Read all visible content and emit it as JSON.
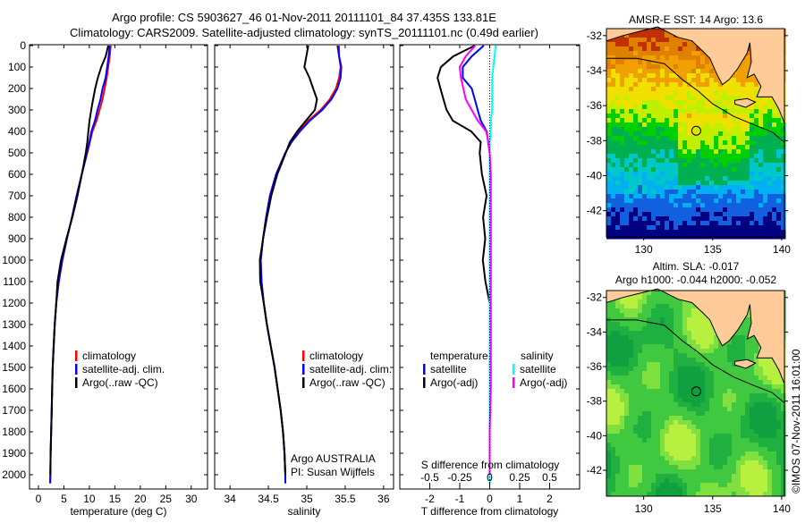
{
  "chart_data": [
    {
      "type": "line",
      "title_line1": "Argo profile: CS 5903627_46 01-Nov-2011 20111101_84 37.435S 133.81E",
      "title_line2": "Climatology: CARS2009. Satellite-adjusted climatology: synTS_20111101.nc (0.49d earlier)",
      "xlabel": "temperature (deg C)",
      "xlim": [
        -1.75,
        33.2
      ],
      "xticks": [
        "0",
        "5",
        "10",
        "15",
        "20",
        "25",
        "30"
      ],
      "ylim": [
        0,
        2065
      ],
      "yticks": [
        "0",
        "100",
        "200",
        "300",
        "400",
        "500",
        "600",
        "700",
        "800",
        "900",
        "1000",
        "1100",
        "1200",
        "1300",
        "1400",
        "1500",
        "1600",
        "1700",
        "1800",
        "1900",
        "2000"
      ],
      "legend": [
        "climatology",
        "satellite-adj. clim.",
        "Argo(..raw -QC)"
      ],
      "depth": [
        0,
        50,
        100,
        150,
        200,
        250,
        300,
        350,
        400,
        450,
        500,
        600,
        700,
        800,
        900,
        1000,
        1100,
        1200,
        1300,
        1400,
        1500,
        1600,
        1700,
        1800,
        1900,
        2000,
        2040
      ],
      "series": [
        {
          "name": "climatology",
          "color": "#ff0000",
          "values": [
            14.2,
            14.0,
            13.7,
            13.4,
            13.0,
            12.6,
            12.0,
            11.4,
            10.6,
            10.1,
            9.6,
            8.5,
            7.5,
            6.6,
            5.6,
            4.7,
            4.0,
            3.5,
            3.2,
            3.0,
            2.8,
            2.7,
            2.6,
            2.5,
            2.4,
            2.35,
            2.3
          ]
        },
        {
          "name": "satellite-adj. clim.",
          "color": "#0000ff",
          "values": [
            14.0,
            13.8,
            13.5,
            13.2,
            12.6,
            12.2,
            11.6,
            11.1,
            10.4,
            10.0,
            9.5,
            8.5,
            7.5,
            6.6,
            5.6,
            4.7,
            4.0,
            3.5,
            3.2,
            3.0,
            2.8,
            2.7,
            2.6,
            2.5,
            2.4,
            2.35,
            2.3
          ]
        },
        {
          "name": "Argo(..raw -QC)",
          "color": "#000000",
          "values": [
            13.7,
            13.3,
            12.5,
            11.9,
            11.4,
            11.0,
            10.6,
            10.2,
            9.9,
            9.6,
            9.2,
            8.3,
            7.4,
            6.5,
            5.5,
            4.6,
            4.0,
            3.5,
            3.2,
            3.0,
            2.8,
            2.7,
            2.6,
            2.5,
            2.4,
            2.35,
            null
          ]
        }
      ]
    },
    {
      "type": "line",
      "xlabel": "salinity",
      "xlim": [
        33.8,
        36.13
      ],
      "xticks": [
        "34",
        "34.5",
        "35",
        "35.5",
        "36"
      ],
      "legend": [
        "climatology",
        "satellite-adj. clim.",
        "Argo(..raw -QC)"
      ],
      "annotation": [
        "Argo AUSTRALIA",
        "PI: Susan Wijffels"
      ],
      "depth": [
        0,
        50,
        100,
        150,
        200,
        250,
        300,
        350,
        400,
        450,
        500,
        600,
        700,
        800,
        900,
        1000,
        1100,
        1200,
        1300,
        1400,
        1500,
        1600,
        1700,
        1800,
        1900,
        2000,
        2040
      ],
      "series": [
        {
          "name": "climatology",
          "color": "#ff0000",
          "values": [
            35.42,
            35.42,
            35.44,
            35.42,
            35.38,
            35.3,
            35.18,
            35.02,
            34.9,
            34.8,
            34.72,
            34.6,
            34.52,
            34.47,
            34.43,
            34.4,
            34.41,
            34.44,
            34.48,
            34.53,
            34.58,
            34.62,
            34.66,
            34.69,
            34.71,
            34.72,
            34.72
          ]
        },
        {
          "name": "satellite-adj. clim.",
          "color": "#0000ff",
          "values": [
            35.4,
            35.42,
            35.45,
            35.44,
            35.4,
            35.32,
            35.2,
            35.04,
            34.91,
            34.8,
            34.72,
            34.6,
            34.52,
            34.47,
            34.43,
            34.4,
            34.41,
            34.44,
            34.48,
            34.53,
            34.58,
            34.62,
            34.66,
            34.69,
            34.71,
            34.72,
            34.72
          ]
        },
        {
          "name": "Argo(..raw -QC)",
          "color": "#000000",
          "values": [
            35.02,
            35.0,
            34.98,
            35.05,
            35.1,
            35.15,
            35.12,
            35.0,
            34.88,
            34.78,
            34.72,
            34.6,
            34.52,
            34.47,
            34.43,
            34.4,
            34.41,
            34.44,
            34.48,
            34.53,
            34.58,
            34.62,
            34.66,
            34.69,
            34.71,
            34.72,
            null
          ]
        }
      ]
    },
    {
      "type": "line",
      "xlabel": "T difference from climatology",
      "xlabel_top": "S difference from climatology",
      "xlim": [
        -3,
        3
      ],
      "xticks": [
        "-2",
        "-1",
        "0",
        "1",
        "2"
      ],
      "xticks_top": [
        "-0.5",
        "-0.25",
        "0",
        "0.25",
        "0.5"
      ],
      "legend_left_title": "temperature",
      "legend_right_title": "salinity",
      "legend": [
        "satellite",
        "Argo(-adj)",
        "satellite",
        "Argo(-adj)"
      ],
      "depth": [
        0,
        50,
        100,
        150,
        200,
        250,
        300,
        350,
        400,
        450,
        500,
        600,
        700,
        800,
        900,
        1000,
        1100,
        1200,
        1400,
        1600,
        1800,
        2000,
        2040
      ],
      "series": [
        {
          "name": "T satellite",
          "color": "#0000ff",
          "values": [
            -0.2,
            -0.6,
            -0.9,
            -0.9,
            -0.6,
            -0.5,
            -0.4,
            -0.3,
            -0.1,
            -0.05,
            0,
            0,
            0,
            0,
            0,
            0,
            0,
            0,
            0,
            0,
            0,
            0,
            0
          ]
        },
        {
          "name": "T Argo(-adj)",
          "color": "#000000",
          "values": [
            -0.5,
            -1.2,
            -1.6,
            -1.7,
            -1.6,
            -1.5,
            -1.4,
            -1.2,
            -0.6,
            -0.3,
            -0.35,
            -0.3,
            -0.15,
            -0.25,
            -0.15,
            -0.2,
            -0.1,
            0,
            0,
            0,
            0,
            0,
            null
          ]
        },
        {
          "name": "S satellite",
          "color": "#00ffff",
          "values": [
            0.05,
            0.04,
            0.03,
            0.02,
            0.02,
            0.02,
            0.02,
            0.01,
            0.01,
            0,
            0,
            0,
            0,
            0,
            0,
            0,
            0,
            0,
            0,
            0,
            0,
            0,
            0
          ]
        },
        {
          "name": "S Argo(-adj)",
          "color": "#ff00ff",
          "values": [
            -0.12,
            -0.2,
            -0.25,
            -0.24,
            -0.22,
            -0.2,
            -0.15,
            -0.1,
            -0.03,
            -0.01,
            0,
            0.01,
            0.01,
            0.01,
            0.01,
            0.01,
            0.01,
            0.01,
            0.01,
            0.01,
            0,
            0,
            null
          ]
        }
      ]
    },
    {
      "type": "heatmap",
      "title": "AMSR-E SST: 14 Argo: 13.6",
      "xlim": [
        127.3,
        140.2
      ],
      "ylim": [
        -43.5,
        -31.6
      ],
      "xticks": [
        "130",
        "135",
        "140"
      ],
      "yticks": [
        "-32",
        "-34",
        "-36",
        "-38",
        "-40",
        "-42"
      ],
      "marker": {
        "lon": 133.81,
        "lat": -37.435
      }
    },
    {
      "type": "heatmap",
      "title_line1": "Altim. SLA: -0.017",
      "title_line2": "Argo h1000: -0.044 h2000: -0.052",
      "xlim": [
        127.3,
        140.2
      ],
      "ylim": [
        -43.5,
        -31.6
      ],
      "xticks": [
        "130",
        "135",
        "140"
      ],
      "yticks": [
        "-32",
        "-34",
        "-36",
        "-38",
        "-40",
        "-42"
      ],
      "marker": {
        "lon": 133.81,
        "lat": -37.435
      }
    }
  ],
  "credit": "©IMOS 07-Nov-2011 16:01:00"
}
